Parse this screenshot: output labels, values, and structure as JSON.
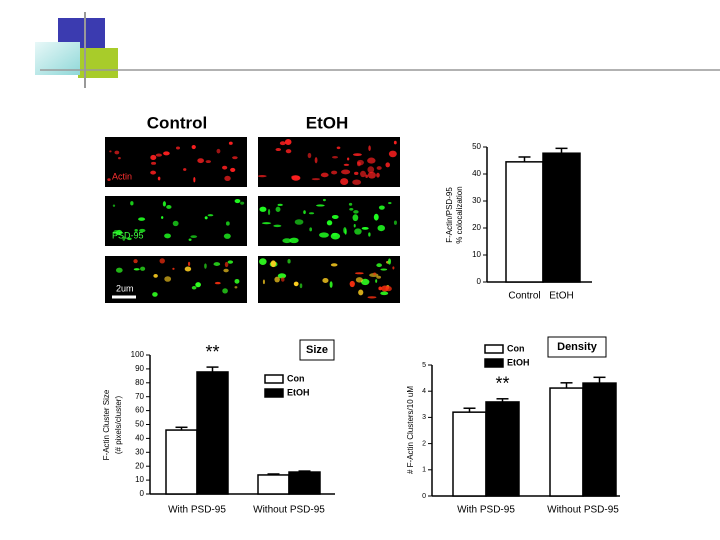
{
  "slide": {
    "headers": [
      "Control",
      "EtOH"
    ],
    "stain_labels": [
      "Actin",
      "PSD-95"
    ],
    "scale_label": "2um"
  },
  "chart_data": [
    {
      "type": "bar",
      "ylabel": [
        "F-Actin/PSD-95",
        "% colocalization"
      ],
      "categories": [
        "Control",
        "EtOH"
      ],
      "values": [
        44.5,
        47.7
      ],
      "errors": [
        1.8,
        1.8
      ],
      "colors": [
        "#ffffff",
        "#000000"
      ],
      "ylim": [
        0,
        50
      ],
      "yticks": [
        0,
        10,
        20,
        30,
        40,
        50
      ]
    },
    {
      "type": "grouped-bar",
      "title": "Size",
      "ylabel": [
        "F-Actin Cluster Size",
        "(# pixels/cluster)"
      ],
      "annotation": "**",
      "categories": [
        "With PSD-95",
        "Without PSD-95"
      ],
      "series": [
        {
          "name": "Con",
          "color": "#ffffff",
          "values": [
            46,
            13.7
          ],
          "errors": [
            2,
            0.7
          ]
        },
        {
          "name": "EtOH",
          "color": "#000000",
          "values": [
            87.8,
            15.8
          ],
          "errors": [
            3.5,
            0.7
          ]
        }
      ],
      "ylim": [
        0,
        100
      ],
      "yticks": [
        0,
        10,
        20,
        30,
        40,
        50,
        60,
        70,
        80,
        90,
        100
      ]
    },
    {
      "type": "grouped-bar",
      "title": "Density",
      "ylabel": [
        "# F-Actin Clusters/10 uM"
      ],
      "annotation": "**",
      "categories": [
        "With PSD-95",
        "Without PSD-95"
      ],
      "series": [
        {
          "name": "Con",
          "color": "#ffffff",
          "values": [
            3.2,
            4.12
          ],
          "errors": [
            0.15,
            0.2
          ]
        },
        {
          "name": "EtOH",
          "color": "#000000",
          "values": [
            3.59,
            4.31
          ],
          "errors": [
            0.12,
            0.22
          ]
        }
      ],
      "ylim": [
        0,
        5
      ],
      "yticks": [
        0,
        1,
        2,
        3,
        4,
        5
      ]
    }
  ]
}
